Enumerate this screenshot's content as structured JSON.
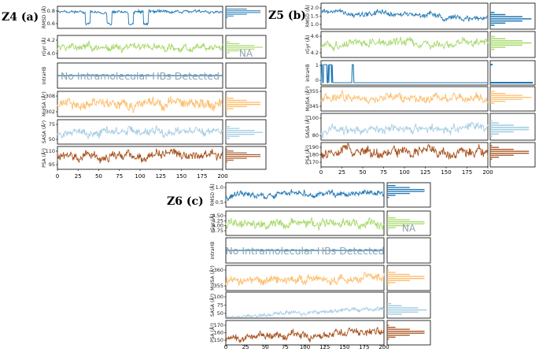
{
  "chart_data": [
    {
      "type": "line",
      "label": "Z4 (a)",
      "x_range": [
        0,
        200
      ],
      "x_ticks": [
        "0",
        "25",
        "50",
        "75",
        "100",
        "125",
        "150",
        "175",
        "200"
      ],
      "na_label": "NA",
      "panels": [
        {
          "key": "rmsd",
          "ylabel": "RMSD (Å)",
          "ticks": [
            "0.8",
            "0.6"
          ],
          "color": "#1f77b4",
          "base": 0.75,
          "noise": 0.1,
          "drift": 0.0,
          "dips": true,
          "mode": 0.8
        },
        {
          "key": "rgyr",
          "ylabel": "rGyr (Å)",
          "ticks": [
            "4.2",
            "4.0"
          ],
          "color": "#a6d96a",
          "base": 0.5,
          "noise": 0.22,
          "drift": 0.0,
          "mode": 0.45
        },
        {
          "key": "intraHB",
          "ylabel": "intraHB",
          "ticks": [],
          "color": "#1f77b4",
          "note": "No Intramolecular HBs Detected"
        },
        {
          "key": "molsa",
          "ylabel": "MolSA (Å²)",
          "ticks": [
            "308",
            "302"
          ],
          "color": "#fdbf6f",
          "base": 0.5,
          "noise": 0.32,
          "drift": 0.0,
          "mode": 0.5
        },
        {
          "key": "sasa",
          "ylabel": "SASA (Å²)",
          "ticks": [
            "75",
            "50"
          ],
          "color": "#a6cee3",
          "base": 0.5,
          "noise": 0.25,
          "drift": 0.05,
          "mode": 0.45
        },
        {
          "key": "psa",
          "ylabel": "PSA (Å²)",
          "ticks": [
            "110",
            "95"
          ],
          "color": "#a6501c",
          "base": 0.6,
          "noise": 0.3,
          "drift": 0.0,
          "mode": 0.6
        }
      ]
    },
    {
      "type": "line",
      "label": "Z5 (b)",
      "x_range": [
        0,
        200
      ],
      "x_ticks": [
        "0",
        "25",
        "50",
        "75",
        "100",
        "125",
        "150",
        "175",
        "200"
      ],
      "panels": [
        {
          "key": "rmsd",
          "ylabel": "RMSD (Å)",
          "ticks": [
            "2.0",
            "1.5",
            "1.0"
          ],
          "color": "#1f77b4",
          "base": 0.55,
          "noise": 0.15,
          "drift": -0.3,
          "mode": 0.35
        },
        {
          "key": "rgyr",
          "ylabel": "rGyr (Å)",
          "ticks": [
            "4.6",
            "4.2"
          ],
          "color": "#a6d96a",
          "base": 0.55,
          "noise": 0.22,
          "drift": 0.0,
          "mode": 0.55
        },
        {
          "key": "intraHB",
          "ylabel": "intraHB",
          "ticks": [
            "1",
            "0"
          ],
          "color": "#1f77b4",
          "binary": true
        },
        {
          "key": "molsa",
          "ylabel": "MolSA (Å²)",
          "ticks": [
            "355",
            "345"
          ],
          "color": "#fdbf6f",
          "base": 0.55,
          "noise": 0.25,
          "drift": 0.0,
          "mode": 0.55
        },
        {
          "key": "sasa",
          "ylabel": "SASA (Å²)",
          "ticks": [
            "100",
            "80"
          ],
          "color": "#a6cee3",
          "base": 0.4,
          "noise": 0.22,
          "drift": 0.15,
          "mode": 0.4
        },
        {
          "key": "psa",
          "ylabel": "PSA (Å²)",
          "ticks": [
            "190",
            "180",
            "170"
          ],
          "color": "#a6501c",
          "base": 0.6,
          "noise": 0.3,
          "drift": 0.0,
          "mode": 0.6
        }
      ]
    },
    {
      "type": "line",
      "label": "Z6 (c)",
      "x_range": [
        0,
        200
      ],
      "x_ticks": [
        "0",
        "25",
        "50",
        "75",
        "100",
        "125",
        "150",
        "175",
        "200"
      ],
      "na_label": "NA",
      "panels": [
        {
          "key": "rmsd",
          "ylabel": "RMSD (Å)",
          "ticks": [
            "1.0",
            "0.5"
          ],
          "color": "#1f77b4",
          "base": 0.55,
          "noise": 0.18,
          "drift": 0.15,
          "mode": 0.7
        },
        {
          "key": "rgyr",
          "ylabel": "rGyr (Å)",
          "ticks": [
            "4.50",
            "4.25",
            "4.00",
            "3.75"
          ],
          "color": "#a6d96a",
          "base": 0.5,
          "noise": 0.25,
          "drift": 0.0,
          "mode": 0.5
        },
        {
          "key": "intraHB",
          "ylabel": "intraHB",
          "ticks": [],
          "color": "#1f77b4",
          "note": "No Intramolecular HBs Detected"
        },
        {
          "key": "molsa",
          "ylabel": "MolSA (Å²)",
          "ticks": [
            "360",
            "355"
          ],
          "color": "#fdbf6f",
          "base": 0.45,
          "noise": 0.25,
          "drift": 0.15,
          "mode": 0.5
        },
        {
          "key": "sasa",
          "ylabel": "SASA (Å²)",
          "ticks": [
            "100",
            "75",
            "50"
          ],
          "color": "#a6cee3",
          "base": 0.2,
          "noise": 0.12,
          "drift": 0.35,
          "mode": 0.25
        },
        {
          "key": "psa",
          "ylabel": "PSA (Å²)",
          "ticks": [
            "170",
            "160",
            "150"
          ],
          "color": "#a6501c",
          "base": 0.4,
          "noise": 0.22,
          "drift": 0.25,
          "mode": 0.5
        }
      ]
    }
  ]
}
